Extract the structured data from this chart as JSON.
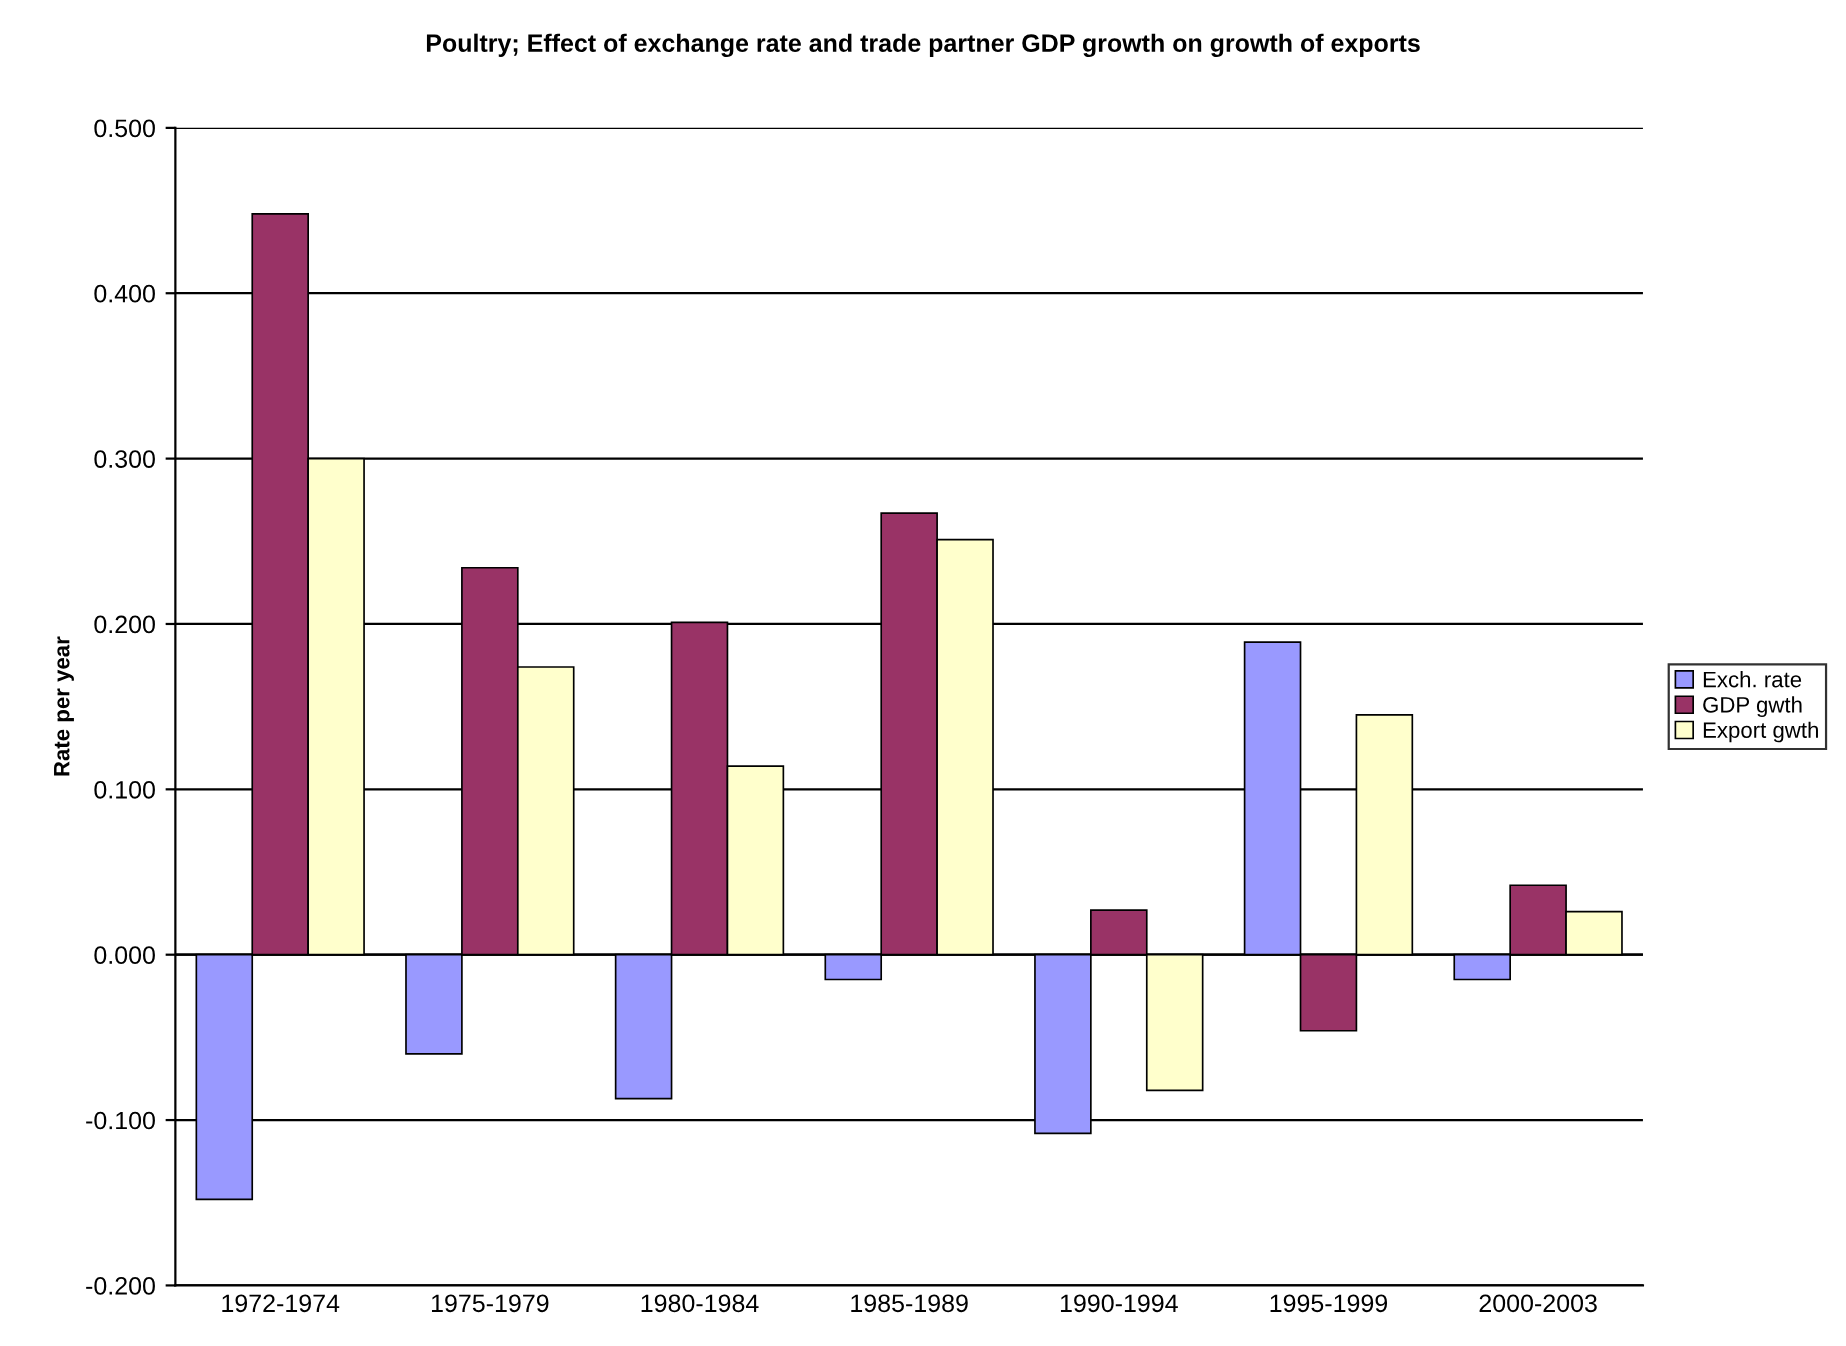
{
  "chart_data": {
    "type": "bar",
    "title": "Poultry; Effect of exchange rate and trade partner GDP growth on growth of exports",
    "ylabel": "Rate per year",
    "categories": [
      "1972-1974",
      "1975-1979",
      "1980-1984",
      "1985-1989",
      "1990-1994",
      "1995-1999",
      "2000-2003"
    ],
    "series": [
      {
        "name": "Exch. rate",
        "color": "#9999ff",
        "values": [
          -0.148,
          -0.06,
          -0.087,
          -0.015,
          -0.108,
          0.189,
          -0.015
        ]
      },
      {
        "name": "GDP gwth",
        "color": "#993366",
        "values": [
          0.448,
          0.234,
          0.201,
          0.267,
          0.027,
          -0.046,
          0.042
        ]
      },
      {
        "name": "Export gwth",
        "color": "#ffffcc",
        "values": [
          0.3,
          0.174,
          0.114,
          0.251,
          -0.082,
          0.145,
          0.026
        ]
      }
    ],
    "ylim": [
      -0.2,
      0.5
    ],
    "yticks": [
      {
        "value": -0.2,
        "label": "-0.200"
      },
      {
        "value": -0.1,
        "label": "-0.100"
      },
      {
        "value": 0,
        "label": "0.000"
      },
      {
        "value": 0.1,
        "label": "0.100"
      },
      {
        "value": 0.2,
        "label": "0.200"
      },
      {
        "value": 0.3,
        "label": "0.300"
      },
      {
        "value": 0.4,
        "label": "0.400"
      },
      {
        "value": 0.5,
        "label": "0.500"
      }
    ],
    "grid": "y",
    "legend": "right"
  }
}
